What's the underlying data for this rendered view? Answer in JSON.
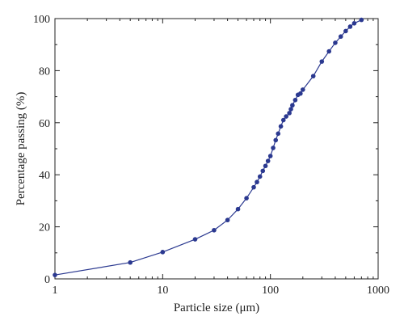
{
  "chart_data": {
    "type": "line",
    "title": "",
    "xlabel": "Particle size (μm)",
    "ylabel": "Percentage passing (%)",
    "xscale": "log",
    "xlim": [
      1,
      1000
    ],
    "ylim": [
      0,
      100
    ],
    "xticks": [
      1,
      10,
      100,
      1000
    ],
    "xtick_labels": [
      "1",
      "10",
      "100",
      "1000"
    ],
    "yticks": [
      0,
      20,
      40,
      60,
      80,
      100
    ],
    "ytick_labels": [
      "0",
      "20",
      "40",
      "60",
      "80",
      "100"
    ],
    "grid": false,
    "legend": "none",
    "series": [
      {
        "color": "#2b3990",
        "marker": "circle",
        "x": [
          1,
          5,
          10,
          20,
          30,
          40,
          50,
          60,
          70,
          75,
          80,
          85,
          90,
          95,
          100,
          106,
          112,
          118,
          125,
          132,
          140,
          150,
          155,
          160,
          170,
          180,
          190,
          200,
          250,
          300,
          350,
          400,
          450,
          500,
          550,
          600,
          700
        ],
        "y": [
          1.5,
          6.3,
          10.3,
          15.2,
          18.7,
          22.6,
          26.8,
          31.0,
          35.2,
          37.2,
          39.3,
          41.5,
          43.4,
          45.3,
          47.2,
          50.3,
          53.3,
          55.8,
          58.6,
          61.0,
          62.4,
          63.7,
          65.2,
          66.7,
          68.7,
          70.7,
          71.2,
          72.7,
          77.9,
          83.5,
          87.4,
          90.7,
          93.1,
          95.2,
          96.9,
          98.2,
          99.5
        ]
      }
    ]
  }
}
